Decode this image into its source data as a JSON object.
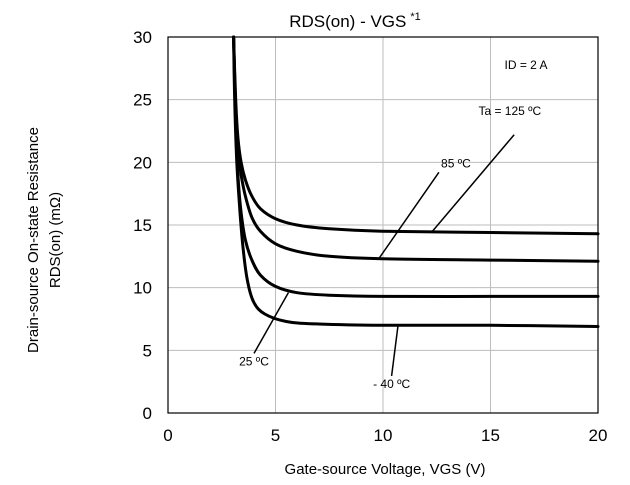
{
  "chart_data": {
    "type": "line",
    "title": "RDS(on) - VGS",
    "title_superscript": "*1",
    "xlabel": "Gate-source Voltage, VGS (V)",
    "ylabel_line1": "Drain-source On-state Resistance",
    "ylabel_line2": "RDS(on) (mΩ)",
    "xlim": [
      0,
      20
    ],
    "ylim": [
      0,
      30
    ],
    "xticks": [
      0,
      5,
      10,
      15,
      20
    ],
    "yticks": [
      0,
      5,
      10,
      15,
      20,
      25,
      30
    ],
    "grid": true,
    "condition": "ID = 2 A",
    "series": [
      {
        "name": "Ta = 125 ºC",
        "x": [
          3.05,
          3.15,
          3.25,
          3.4,
          3.6,
          3.9,
          4.3,
          5.0,
          6.0,
          7.5,
          10,
          15,
          20
        ],
        "y": [
          30,
          25,
          22,
          20,
          18.6,
          17.3,
          16.3,
          15.5,
          15.0,
          14.7,
          14.5,
          14.4,
          14.3
        ]
      },
      {
        "name": "85 ºC",
        "x": [
          3.05,
          3.15,
          3.25,
          3.4,
          3.6,
          3.9,
          4.3,
          5.0,
          6.0,
          7.5,
          10,
          15,
          20
        ],
        "y": [
          30,
          24,
          21,
          19,
          17.3,
          15.6,
          14.5,
          13.5,
          12.9,
          12.5,
          12.3,
          12.2,
          12.1
        ]
      },
      {
        "name": "25 ºC",
        "x": [
          3.05,
          3.15,
          3.25,
          3.4,
          3.6,
          3.9,
          4.3,
          5.0,
          6.0,
          7.5,
          10,
          15,
          20
        ],
        "y": [
          30,
          23,
          19,
          16,
          13.8,
          12.2,
          11.0,
          10.1,
          9.6,
          9.4,
          9.3,
          9.3,
          9.3
        ]
      },
      {
        "name": "- 40 ºC",
        "x": [
          3.05,
          3.1,
          3.2,
          3.35,
          3.5,
          3.7,
          4.0,
          4.5,
          5.5,
          7.0,
          10,
          15,
          20
        ],
        "y": [
          30,
          25,
          20,
          16,
          13,
          10.5,
          8.8,
          7.9,
          7.3,
          7.1,
          7.0,
          7.0,
          6.9
        ]
      }
    ],
    "annotations": [
      {
        "text": "Ta = 125 ºC",
        "series": 0,
        "point": [
          12.3,
          14.5
        ],
        "label_pos": [
          15.9,
          23.3
        ],
        "anchor": "middle"
      },
      {
        "text": "85 ºC",
        "series": 1,
        "point": [
          9.8,
          12.3
        ],
        "label_pos": [
          12.7,
          19.6
        ],
        "anchor": "start"
      },
      {
        "text": "25 ºC",
        "series": 2,
        "point": [
          5.6,
          9.6
        ],
        "label_pos": [
          4.0,
          3.8
        ],
        "anchor": "middle"
      },
      {
        "text": "- 40 ºC",
        "series": 3,
        "point": [
          10.7,
          7.0
        ],
        "label_pos": [
          10.4,
          2.0
        ],
        "anchor": "middle"
      }
    ]
  }
}
